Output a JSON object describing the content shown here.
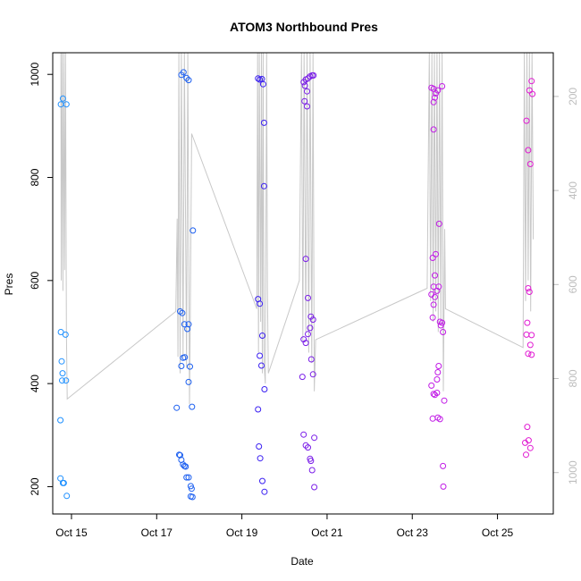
{
  "chart_data": {
    "type": "scatter",
    "title": "ATOM3 Northbound Pres",
    "xlabel": "Date",
    "ylabel": "Pres",
    "x_ticks": [
      "Oct 15",
      "Oct 17",
      "Oct 19",
      "Oct 21",
      "Oct 23",
      "Oct 25"
    ],
    "x_tick_values": [
      15,
      17,
      19,
      21,
      23,
      25
    ],
    "xlim": [
      14.56,
      26.31
    ],
    "ylim": [
      147,
      1042
    ],
    "y_ticks": [
      200,
      400,
      600,
      800,
      1000
    ],
    "y_right_ticks": [
      200,
      400,
      600,
      800,
      1000
    ],
    "y_right_ylim": [
      1088,
      107
    ],
    "grid": false,
    "points": [
      {
        "x": 14.75,
        "y": 942,
        "c": "#1e90ff"
      },
      {
        "x": 14.8,
        "y": 953,
        "c": "#1e90ff"
      },
      {
        "x": 14.88,
        "y": 942,
        "c": "#1e90ff"
      },
      {
        "x": 14.75,
        "y": 500,
        "c": "#1e90ff"
      },
      {
        "x": 14.86,
        "y": 495,
        "c": "#1e90ff"
      },
      {
        "x": 14.77,
        "y": 443,
        "c": "#1e90ff"
      },
      {
        "x": 14.79,
        "y": 420,
        "c": "#1e90ff"
      },
      {
        "x": 14.78,
        "y": 406,
        "c": "#1e90ff"
      },
      {
        "x": 14.87,
        "y": 406,
        "c": "#1e90ff"
      },
      {
        "x": 14.74,
        "y": 329,
        "c": "#1e90ff"
      },
      {
        "x": 14.74,
        "y": 216,
        "c": "#1e90ff"
      },
      {
        "x": 14.8,
        "y": 207,
        "c": "#1e90ff"
      },
      {
        "x": 14.82,
        "y": 207,
        "c": "#1e90ff"
      },
      {
        "x": 14.89,
        "y": 182,
        "c": "#1e90ff"
      },
      {
        "x": 17.58,
        "y": 999,
        "c": "#1c5ff0"
      },
      {
        "x": 17.63,
        "y": 1004,
        "c": "#1c5ff0"
      },
      {
        "x": 17.7,
        "y": 993,
        "c": "#1c5ff0"
      },
      {
        "x": 17.75,
        "y": 989,
        "c": "#1c5ff0"
      },
      {
        "x": 17.55,
        "y": 540,
        "c": "#1c5ff0"
      },
      {
        "x": 17.6,
        "y": 537,
        "c": "#1c5ff0"
      },
      {
        "x": 17.65,
        "y": 515,
        "c": "#1c5ff0"
      },
      {
        "x": 17.75,
        "y": 515,
        "c": "#1c5ff0"
      },
      {
        "x": 17.72,
        "y": 506,
        "c": "#1c5ff0"
      },
      {
        "x": 17.62,
        "y": 450,
        "c": "#1c5ff0"
      },
      {
        "x": 17.66,
        "y": 451,
        "c": "#1c5ff0"
      },
      {
        "x": 17.58,
        "y": 434,
        "c": "#1c5ff0"
      },
      {
        "x": 17.78,
        "y": 433,
        "c": "#1c5ff0"
      },
      {
        "x": 17.75,
        "y": 403,
        "c": "#1c5ff0"
      },
      {
        "x": 17.47,
        "y": 353,
        "c": "#1c5ff0"
      },
      {
        "x": 17.83,
        "y": 355,
        "c": "#1c5ff0"
      },
      {
        "x": 17.85,
        "y": 697,
        "c": "#1c5ff0"
      },
      {
        "x": 17.53,
        "y": 262,
        "c": "#1c5ff0"
      },
      {
        "x": 17.55,
        "y": 261,
        "c": "#1c5ff0"
      },
      {
        "x": 17.58,
        "y": 252,
        "c": "#1c5ff0"
      },
      {
        "x": 17.62,
        "y": 243,
        "c": "#1c5ff0"
      },
      {
        "x": 17.65,
        "y": 240,
        "c": "#1c5ff0"
      },
      {
        "x": 17.68,
        "y": 239,
        "c": "#1c5ff0"
      },
      {
        "x": 17.7,
        "y": 218,
        "c": "#1c5ff0"
      },
      {
        "x": 17.75,
        "y": 218,
        "c": "#1c5ff0"
      },
      {
        "x": 17.8,
        "y": 201,
        "c": "#1c5ff0"
      },
      {
        "x": 17.82,
        "y": 196,
        "c": "#1c5ff0"
      },
      {
        "x": 17.8,
        "y": 181,
        "c": "#1c5ff0"
      },
      {
        "x": 17.84,
        "y": 180,
        "c": "#1c5ff0"
      },
      {
        "x": 19.38,
        "y": 992,
        "c": "#3a1ff2"
      },
      {
        "x": 19.42,
        "y": 990,
        "c": "#3a1ff2"
      },
      {
        "x": 19.47,
        "y": 991,
        "c": "#3a1ff2"
      },
      {
        "x": 19.5,
        "y": 981,
        "c": "#3a1ff2"
      },
      {
        "x": 19.52,
        "y": 906,
        "c": "#3a1ff2"
      },
      {
        "x": 19.52,
        "y": 783,
        "c": "#3a1ff2"
      },
      {
        "x": 19.38,
        "y": 564,
        "c": "#3a1ff2"
      },
      {
        "x": 19.42,
        "y": 555,
        "c": "#3a1ff2"
      },
      {
        "x": 19.48,
        "y": 493,
        "c": "#3a1ff2"
      },
      {
        "x": 19.42,
        "y": 454,
        "c": "#3a1ff2"
      },
      {
        "x": 19.46,
        "y": 435,
        "c": "#3a1ff2"
      },
      {
        "x": 19.53,
        "y": 389,
        "c": "#3a1ff2"
      },
      {
        "x": 19.38,
        "y": 350,
        "c": "#3a1ff2"
      },
      {
        "x": 19.4,
        "y": 278,
        "c": "#3a1ff2"
      },
      {
        "x": 19.43,
        "y": 255,
        "c": "#3a1ff2"
      },
      {
        "x": 19.48,
        "y": 211,
        "c": "#3a1ff2"
      },
      {
        "x": 19.53,
        "y": 190,
        "c": "#3a1ff2"
      },
      {
        "x": 20.45,
        "y": 985,
        "c": "#7a1de8"
      },
      {
        "x": 20.5,
        "y": 990,
        "c": "#7a1de8"
      },
      {
        "x": 20.55,
        "y": 992,
        "c": "#7a1de8"
      },
      {
        "x": 20.6,
        "y": 996,
        "c": "#7a1de8"
      },
      {
        "x": 20.65,
        "y": 998,
        "c": "#7a1de8"
      },
      {
        "x": 20.68,
        "y": 998,
        "c": "#7a1de8"
      },
      {
        "x": 20.48,
        "y": 978,
        "c": "#7a1de8"
      },
      {
        "x": 20.53,
        "y": 967,
        "c": "#7a1de8"
      },
      {
        "x": 20.47,
        "y": 948,
        "c": "#7a1de8"
      },
      {
        "x": 20.53,
        "y": 938,
        "c": "#7a1de8"
      },
      {
        "x": 20.5,
        "y": 642,
        "c": "#7a1de8"
      },
      {
        "x": 20.55,
        "y": 566,
        "c": "#7a1de8"
      },
      {
        "x": 20.62,
        "y": 530,
        "c": "#7a1de8"
      },
      {
        "x": 20.67,
        "y": 524,
        "c": "#7a1de8"
      },
      {
        "x": 20.6,
        "y": 508,
        "c": "#7a1de8"
      },
      {
        "x": 20.55,
        "y": 496,
        "c": "#7a1de8"
      },
      {
        "x": 20.45,
        "y": 486,
        "c": "#7a1de8"
      },
      {
        "x": 20.5,
        "y": 479,
        "c": "#7a1de8"
      },
      {
        "x": 20.63,
        "y": 447,
        "c": "#7a1de8"
      },
      {
        "x": 20.42,
        "y": 413,
        "c": "#7a1de8"
      },
      {
        "x": 20.67,
        "y": 418,
        "c": "#7a1de8"
      },
      {
        "x": 20.45,
        "y": 301,
        "c": "#7a1de8"
      },
      {
        "x": 20.5,
        "y": 280,
        "c": "#7a1de8"
      },
      {
        "x": 20.55,
        "y": 276,
        "c": "#7a1de8"
      },
      {
        "x": 20.7,
        "y": 295,
        "c": "#7a1de8"
      },
      {
        "x": 20.6,
        "y": 254,
        "c": "#7a1de8"
      },
      {
        "x": 20.62,
        "y": 250,
        "c": "#7a1de8"
      },
      {
        "x": 20.65,
        "y": 232,
        "c": "#7a1de8"
      },
      {
        "x": 20.7,
        "y": 199,
        "c": "#7a1de8"
      },
      {
        "x": 23.45,
        "y": 974,
        "c": "#c11ae6"
      },
      {
        "x": 23.5,
        "y": 972,
        "c": "#c11ae6"
      },
      {
        "x": 23.55,
        "y": 963,
        "c": "#c11ae6"
      },
      {
        "x": 23.6,
        "y": 969,
        "c": "#c11ae6"
      },
      {
        "x": 23.7,
        "y": 977,
        "c": "#c11ae6"
      },
      {
        "x": 23.53,
        "y": 955,
        "c": "#c11ae6"
      },
      {
        "x": 23.5,
        "y": 946,
        "c": "#c11ae6"
      },
      {
        "x": 23.5,
        "y": 893,
        "c": "#c11ae6"
      },
      {
        "x": 23.63,
        "y": 710,
        "c": "#c11ae6"
      },
      {
        "x": 23.55,
        "y": 651,
        "c": "#c11ae6"
      },
      {
        "x": 23.48,
        "y": 644,
        "c": "#c11ae6"
      },
      {
        "x": 23.53,
        "y": 610,
        "c": "#c11ae6"
      },
      {
        "x": 23.5,
        "y": 588,
        "c": "#c11ae6"
      },
      {
        "x": 23.62,
        "y": 588,
        "c": "#c11ae6"
      },
      {
        "x": 23.45,
        "y": 573,
        "c": "#c11ae6"
      },
      {
        "x": 23.53,
        "y": 568,
        "c": "#c11ae6"
      },
      {
        "x": 23.58,
        "y": 580,
        "c": "#c11ae6"
      },
      {
        "x": 23.5,
        "y": 553,
        "c": "#c11ae6"
      },
      {
        "x": 23.48,
        "y": 528,
        "c": "#c11ae6"
      },
      {
        "x": 23.65,
        "y": 520,
        "c": "#c11ae6"
      },
      {
        "x": 23.7,
        "y": 518,
        "c": "#c11ae6"
      },
      {
        "x": 23.67,
        "y": 513,
        "c": "#c11ae6"
      },
      {
        "x": 23.72,
        "y": 500,
        "c": "#c11ae6"
      },
      {
        "x": 23.62,
        "y": 434,
        "c": "#c11ae6"
      },
      {
        "x": 23.6,
        "y": 422,
        "c": "#c11ae6"
      },
      {
        "x": 23.58,
        "y": 408,
        "c": "#c11ae6"
      },
      {
        "x": 23.45,
        "y": 396,
        "c": "#c11ae6"
      },
      {
        "x": 23.5,
        "y": 380,
        "c": "#c11ae6"
      },
      {
        "x": 23.58,
        "y": 382,
        "c": "#c11ae6"
      },
      {
        "x": 23.53,
        "y": 378,
        "c": "#c11ae6"
      },
      {
        "x": 23.75,
        "y": 367,
        "c": "#c11ae6"
      },
      {
        "x": 23.48,
        "y": 332,
        "c": "#c11ae6"
      },
      {
        "x": 23.6,
        "y": 334,
        "c": "#c11ae6"
      },
      {
        "x": 23.65,
        "y": 331,
        "c": "#c11ae6"
      },
      {
        "x": 23.72,
        "y": 240,
        "c": "#c11ae6"
      },
      {
        "x": 23.73,
        "y": 200,
        "c": "#c11ae6"
      },
      {
        "x": 25.68,
        "y": 910,
        "c": "#e11ad2"
      },
      {
        "x": 25.75,
        "y": 969,
        "c": "#e11ad2"
      },
      {
        "x": 25.8,
        "y": 987,
        "c": "#e11ad2"
      },
      {
        "x": 25.82,
        "y": 962,
        "c": "#e11ad2"
      },
      {
        "x": 25.72,
        "y": 853,
        "c": "#e11ad2"
      },
      {
        "x": 25.77,
        "y": 826,
        "c": "#e11ad2"
      },
      {
        "x": 25.72,
        "y": 585,
        "c": "#e11ad2"
      },
      {
        "x": 25.75,
        "y": 578,
        "c": "#e11ad2"
      },
      {
        "x": 25.7,
        "y": 518,
        "c": "#e11ad2"
      },
      {
        "x": 25.68,
        "y": 495,
        "c": "#e11ad2"
      },
      {
        "x": 25.8,
        "y": 494,
        "c": "#e11ad2"
      },
      {
        "x": 25.77,
        "y": 475,
        "c": "#e11ad2"
      },
      {
        "x": 25.72,
        "y": 458,
        "c": "#e11ad2"
      },
      {
        "x": 25.8,
        "y": 456,
        "c": "#e11ad2"
      },
      {
        "x": 25.7,
        "y": 316,
        "c": "#e11ad2"
      },
      {
        "x": 25.65,
        "y": 285,
        "c": "#e11ad2"
      },
      {
        "x": 25.73,
        "y": 290,
        "c": "#e11ad2"
      },
      {
        "x": 25.77,
        "y": 275,
        "c": "#e11ad2"
      },
      {
        "x": 25.67,
        "y": 262,
        "c": "#e11ad2"
      }
    ],
    "line_color": "#c8c8c8",
    "trace_points": [
      [
        14.75,
        1042
      ],
      [
        14.76,
        600
      ],
      [
        14.78,
        1042
      ],
      [
        14.8,
        580
      ],
      [
        14.82,
        1042
      ],
      [
        14.84,
        620
      ],
      [
        14.86,
        1042
      ],
      [
        14.88,
        500
      ],
      [
        14.9,
        370
      ],
      [
        17.45,
        540
      ],
      [
        17.48,
        720
      ],
      [
        17.5,
        452
      ],
      [
        17.52,
        1042
      ],
      [
        17.55,
        420
      ],
      [
        17.58,
        1042
      ],
      [
        17.62,
        450
      ],
      [
        17.65,
        1042
      ],
      [
        17.7,
        430
      ],
      [
        17.73,
        1042
      ],
      [
        17.77,
        360
      ],
      [
        17.79,
        535
      ],
      [
        17.82,
        885
      ],
      [
        19.35,
        545
      ],
      [
        19.37,
        1042
      ],
      [
        19.39,
        460
      ],
      [
        19.41,
        1042
      ],
      [
        19.44,
        520
      ],
      [
        19.46,
        1042
      ],
      [
        19.48,
        420
      ],
      [
        19.5,
        1042
      ],
      [
        19.52,
        440
      ],
      [
        19.55,
        400
      ],
      [
        19.58,
        1042
      ],
      [
        19.6,
        580
      ],
      [
        19.62,
        420
      ],
      [
        20.35,
        600
      ],
      [
        20.4,
        1042
      ],
      [
        20.43,
        480
      ],
      [
        20.46,
        1042
      ],
      [
        20.5,
        500
      ],
      [
        20.53,
        1042
      ],
      [
        20.57,
        460
      ],
      [
        20.6,
        1042
      ],
      [
        20.64,
        440
      ],
      [
        20.67,
        1042
      ],
      [
        20.7,
        385
      ],
      [
        20.73,
        485
      ],
      [
        23.35,
        585
      ],
      [
        23.4,
        1042
      ],
      [
        23.43,
        560
      ],
      [
        23.46,
        1042
      ],
      [
        23.49,
        520
      ],
      [
        23.52,
        1042
      ],
      [
        23.55,
        540
      ],
      [
        23.58,
        1042
      ],
      [
        23.61,
        500
      ],
      [
        23.64,
        1042
      ],
      [
        23.67,
        520
      ],
      [
        23.7,
        1042
      ],
      [
        23.73,
        385
      ],
      [
        23.76,
        700
      ],
      [
        23.78,
        545
      ],
      [
        25.6,
        470
      ],
      [
        25.63,
        1042
      ],
      [
        25.66,
        560
      ],
      [
        25.69,
        1042
      ],
      [
        25.72,
        600
      ],
      [
        25.75,
        1042
      ],
      [
        25.78,
        540
      ],
      [
        25.81,
        1042
      ],
      [
        25.84,
        680
      ]
    ]
  }
}
